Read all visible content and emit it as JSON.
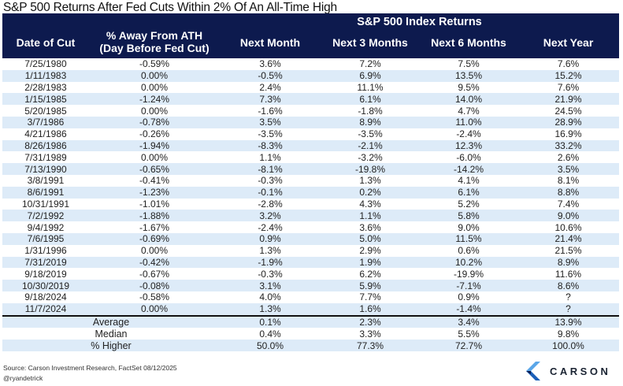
{
  "title": "S&P 500 Returns After Fed Cuts Within 2% Of An All-Time High",
  "chart_data": {
    "type": "table",
    "title": "S&P 500 Returns After Fed Cuts Within 2% Of An All-Time High",
    "group_header": "S&P 500 Index Returns",
    "columns": [
      "Date of Cut",
      "% Away From ATH (Day Before Fed Cut)",
      "Next Month",
      "Next 3 Months",
      "Next 6 Months",
      "Next Year"
    ],
    "rows": [
      [
        "7/25/1980",
        "-0.59%",
        "3.6%",
        "7.2%",
        "7.5%",
        "7.6%"
      ],
      [
        "1/11/1983",
        "0.00%",
        "-0.5%",
        "6.9%",
        "13.5%",
        "15.2%"
      ],
      [
        "2/28/1983",
        "0.00%",
        "2.4%",
        "11.1%",
        "9.5%",
        "7.6%"
      ],
      [
        "1/15/1985",
        "-1.24%",
        "7.3%",
        "6.1%",
        "14.0%",
        "21.9%"
      ],
      [
        "5/20/1985",
        "0.00%",
        "-1.6%",
        "-1.8%",
        "4.7%",
        "24.5%"
      ],
      [
        "3/7/1986",
        "-0.78%",
        "3.5%",
        "8.9%",
        "11.0%",
        "28.9%"
      ],
      [
        "4/21/1986",
        "-0.26%",
        "-3.5%",
        "-3.5%",
        "-2.4%",
        "16.9%"
      ],
      [
        "8/26/1986",
        "-1.94%",
        "-8.3%",
        "-2.1%",
        "12.3%",
        "33.2%"
      ],
      [
        "7/31/1989",
        "0.00%",
        "1.1%",
        "-3.2%",
        "-6.0%",
        "2.6%"
      ],
      [
        "7/13/1990",
        "-0.65%",
        "-8.1%",
        "-19.8%",
        "-14.2%",
        "3.5%"
      ],
      [
        "3/8/1991",
        "-0.41%",
        "-0.3%",
        "1.3%",
        "4.1%",
        "8.1%"
      ],
      [
        "8/6/1991",
        "-1.23%",
        "-0.1%",
        "0.2%",
        "6.1%",
        "8.8%"
      ],
      [
        "10/31/1991",
        "-1.01%",
        "-2.8%",
        "4.3%",
        "5.2%",
        "7.4%"
      ],
      [
        "7/2/1992",
        "-1.88%",
        "3.2%",
        "1.1%",
        "5.8%",
        "9.0%"
      ],
      [
        "9/4/1992",
        "-1.67%",
        "-2.4%",
        "3.6%",
        "9.0%",
        "10.6%"
      ],
      [
        "7/6/1995",
        "-0.69%",
        "0.9%",
        "5.0%",
        "11.5%",
        "21.4%"
      ],
      [
        "1/31/1996",
        "0.00%",
        "1.3%",
        "2.9%",
        "0.6%",
        "21.5%"
      ],
      [
        "7/31/2019",
        "-0.42%",
        "-1.9%",
        "1.9%",
        "10.2%",
        "8.9%"
      ],
      [
        "9/18/2019",
        "-0.67%",
        "-0.3%",
        "6.2%",
        "-19.9%",
        "11.6%"
      ],
      [
        "10/30/2019",
        "-0.08%",
        "3.1%",
        "5.9%",
        "-7.1%",
        "8.6%"
      ],
      [
        "9/18/2024",
        "-0.58%",
        "4.0%",
        "7.7%",
        "0.9%",
        "?"
      ],
      [
        "11/7/2024",
        "0.00%",
        "1.3%",
        "1.6%",
        "-1.4%",
        "?"
      ]
    ],
    "summary": [
      [
        "Average",
        "0.1%",
        "2.3%",
        "3.4%",
        "13.9%"
      ],
      [
        "Median",
        "0.4%",
        "3.3%",
        "5.5%",
        "9.8%"
      ],
      [
        "% Higher",
        "50.0%",
        "77.3%",
        "72.7%",
        "100.0%"
      ]
    ],
    "colors": {
      "header_bg": "#0d1a4e",
      "alt_row": "#ddebf8",
      "positive": "#4caf6e",
      "negative": "#a3293b"
    }
  },
  "footer": {
    "source": "Source: Carson Investment Research, FactSet 08/12/2025",
    "handle": "@ryandetrick",
    "logo_text": "CARSON"
  }
}
